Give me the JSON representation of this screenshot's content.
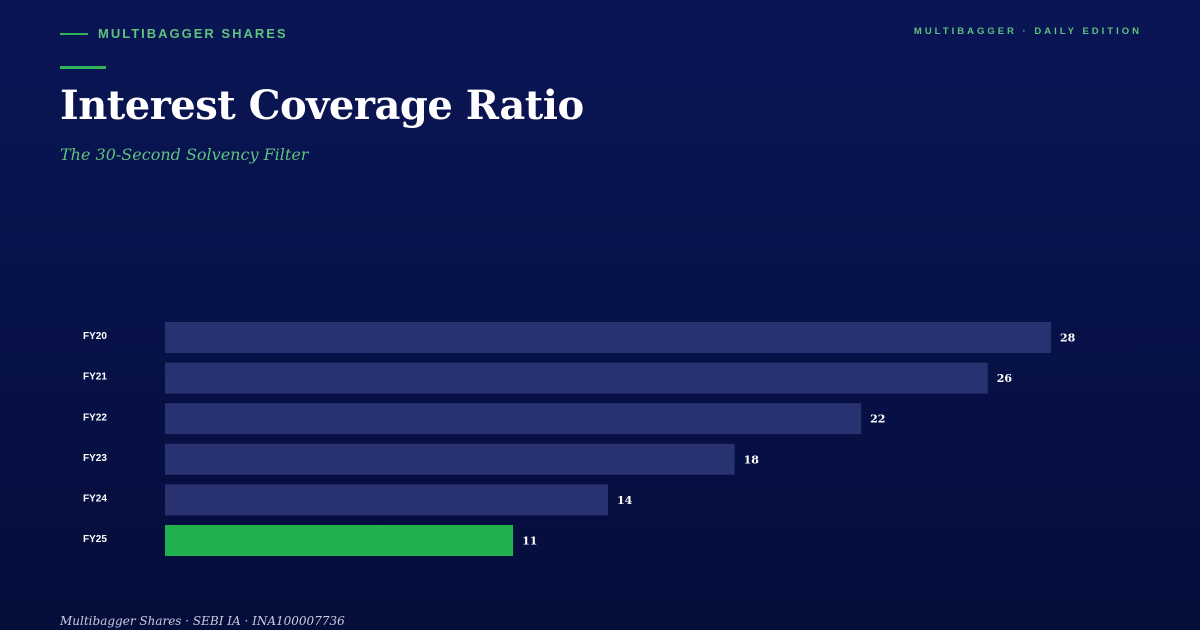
{
  "header": {
    "brand": "MULTIBAGGER SHARES",
    "edition": "MULTIBAGGER · DAILY EDITION",
    "title": "Interest Coverage Ratio",
    "subtitle": "The 30-Second Solvency Filter"
  },
  "footer": {
    "text": "Multibagger Shares · SEBI IA · INA100007736"
  },
  "colors": {
    "background": "#07124a",
    "bar": "#283270",
    "highlight_bar": "#22b14f",
    "accent": "#5ec27e",
    "text": "#ffffff"
  },
  "chart_data": {
    "type": "bar",
    "orientation": "horizontal",
    "categories": [
      "FY20",
      "FY21",
      "FY22",
      "FY23",
      "FY24",
      "FY25"
    ],
    "values": [
      28,
      26,
      22,
      18,
      14,
      11
    ],
    "highlight_index": 5,
    "xlim": [
      0,
      28
    ],
    "grid": false,
    "legend": "none"
  }
}
